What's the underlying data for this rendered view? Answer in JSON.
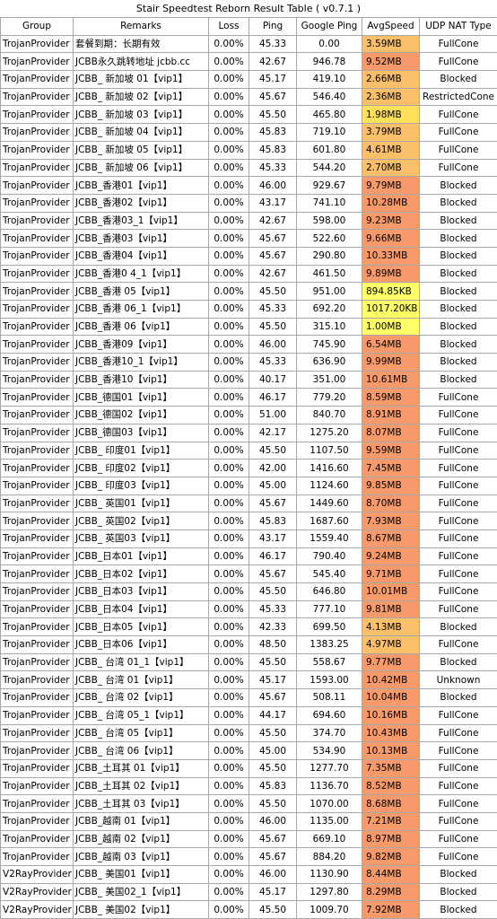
{
  "title": "Stair Speedtest Reborn Result Table ( v0.7.1 )",
  "headers": [
    "Group",
    "Remarks",
    "Loss",
    "Ping",
    "Google Ping",
    "AvgSpeed",
    "UDP NAT Type"
  ],
  "speed_colors": {
    "fast": "#f79a6b",
    "medium": "#fbbf6a",
    "slow": "#fde05a",
    "veryslow": "#ffff66"
  },
  "rows": [
    {
      "group": "TrojanProvider",
      "remarks": "套餐到期：长期有效",
      "loss": "0.00%",
      "ping": "45.33",
      "gping": "0.00",
      "speed": "3.59MB",
      "nat": "FullCone",
      "color": "medium"
    },
    {
      "group": "TrojanProvider",
      "remarks": "JCBB永久跳转地址 jcbb.cc",
      "loss": "0.00%",
      "ping": "42.67",
      "gping": "946.78",
      "speed": "9.52MB",
      "nat": "FullCone",
      "color": "fast"
    },
    {
      "group": "TrojanProvider",
      "remarks": "JCBB_ 新加坡 01【vip1】",
      "loss": "0.00%",
      "ping": "45.17",
      "gping": "419.10",
      "speed": "2.66MB",
      "nat": "Blocked",
      "color": "medium"
    },
    {
      "group": "TrojanProvider",
      "remarks": "JCBB_ 新加坡 02【vip1】",
      "loss": "0.00%",
      "ping": "45.67",
      "gping": "546.40",
      "speed": "2.36MB",
      "nat": "RestrictedCone",
      "color": "medium"
    },
    {
      "group": "TrojanProvider",
      "remarks": "JCBB_ 新加坡 03【vip1】",
      "loss": "0.00%",
      "ping": "45.50",
      "gping": "465.80",
      "speed": "1.98MB",
      "nat": "FullCone",
      "color": "slow"
    },
    {
      "group": "TrojanProvider",
      "remarks": "JCBB_ 新加坡 04【vip1】",
      "loss": "0.00%",
      "ping": "45.83",
      "gping": "719.10",
      "speed": "3.79MB",
      "nat": "FullCone",
      "color": "medium"
    },
    {
      "group": "TrojanProvider",
      "remarks": "JCBB_ 新加坡 05【vip1】",
      "loss": "0.00%",
      "ping": "45.83",
      "gping": "601.80",
      "speed": "4.61MB",
      "nat": "FullCone",
      "color": "medium"
    },
    {
      "group": "TrojanProvider",
      "remarks": "JCBB_ 新加坡 06【vip1】",
      "loss": "0.00%",
      "ping": "45.33",
      "gping": "544.20",
      "speed": "2.70MB",
      "nat": "FullCone",
      "color": "medium"
    },
    {
      "group": "TrojanProvider",
      "remarks": "JCBB_香港01【vip1】",
      "loss": "0.00%",
      "ping": "46.00",
      "gping": "929.67",
      "speed": "9.79MB",
      "nat": "Blocked",
      "color": "fast"
    },
    {
      "group": "TrojanProvider",
      "remarks": "JCBB_香港02【vip1】",
      "loss": "0.00%",
      "ping": "43.17",
      "gping": "741.10",
      "speed": "10.28MB",
      "nat": "Blocked",
      "color": "fast"
    },
    {
      "group": "TrojanProvider",
      "remarks": "JCBB_香港03_1【vip1】",
      "loss": "0.00%",
      "ping": "42.67",
      "gping": "598.00",
      "speed": "9.23MB",
      "nat": "Blocked",
      "color": "fast"
    },
    {
      "group": "TrojanProvider",
      "remarks": "JCBB_香港03【vip1】",
      "loss": "0.00%",
      "ping": "45.67",
      "gping": "522.60",
      "speed": "9.66MB",
      "nat": "Blocked",
      "color": "fast"
    },
    {
      "group": "TrojanProvider",
      "remarks": "JCBB_香港04【vip1】",
      "loss": "0.00%",
      "ping": "45.67",
      "gping": "290.80",
      "speed": "10.33MB",
      "nat": "Blocked",
      "color": "fast"
    },
    {
      "group": "TrojanProvider",
      "remarks": "JCBB_香港0 4_1【vip1】",
      "loss": "0.00%",
      "ping": "42.67",
      "gping": "461.50",
      "speed": "9.89MB",
      "nat": "Blocked",
      "color": "fast"
    },
    {
      "group": "TrojanProvider",
      "remarks": "JCBB_香港 05【vip1】",
      "loss": "0.00%",
      "ping": "45.50",
      "gping": "951.00",
      "speed": "894.85KB",
      "nat": "Blocked",
      "color": "veryslow"
    },
    {
      "group": "TrojanProvider",
      "remarks": "JCBB_香港 06_1【vip1】",
      "loss": "0.00%",
      "ping": "45.33",
      "gping": "692.20",
      "speed": "1017.20KB",
      "nat": "Blocked",
      "color": "veryslow"
    },
    {
      "group": "TrojanProvider",
      "remarks": "JCBB_香港 06【vip1】",
      "loss": "0.00%",
      "ping": "45.50",
      "gping": "315.10",
      "speed": "1.00MB",
      "nat": "Blocked",
      "color": "veryslow"
    },
    {
      "group": "TrojanProvider",
      "remarks": "JCBB_香港09【vip1】",
      "loss": "0.00%",
      "ping": "46.00",
      "gping": "745.90",
      "speed": "6.54MB",
      "nat": "Blocked",
      "color": "fast"
    },
    {
      "group": "TrojanProvider",
      "remarks": "JCBB_香港10_1【vip1】",
      "loss": "0.00%",
      "ping": "45.33",
      "gping": "636.90",
      "speed": "9.99MB",
      "nat": "Blocked",
      "color": "fast"
    },
    {
      "group": "TrojanProvider",
      "remarks": "JCBB_香港10【vip1】",
      "loss": "0.00%",
      "ping": "40.17",
      "gping": "351.00",
      "speed": "10.61MB",
      "nat": "Blocked",
      "color": "fast"
    },
    {
      "group": "TrojanProvider",
      "remarks": "JCBB_德国01【vip1】",
      "loss": "0.00%",
      "ping": "46.17",
      "gping": "779.20",
      "speed": "8.59MB",
      "nat": "FullCone",
      "color": "fast"
    },
    {
      "group": "TrojanProvider",
      "remarks": "JCBB_德国02【vip1】",
      "loss": "0.00%",
      "ping": "51.00",
      "gping": "840.70",
      "speed": "8.91MB",
      "nat": "FullCone",
      "color": "fast"
    },
    {
      "group": "TrojanProvider",
      "remarks": "JCBB_德国03【vip1】",
      "loss": "0.00%",
      "ping": "42.17",
      "gping": "1275.20",
      "speed": "8.07MB",
      "nat": "FullCone",
      "color": "fast"
    },
    {
      "group": "TrojanProvider",
      "remarks": "JCBB_ 印度01【vip1】",
      "loss": "0.00%",
      "ping": "45.50",
      "gping": "1107.50",
      "speed": "9.59MB",
      "nat": "FullCone",
      "color": "fast"
    },
    {
      "group": "TrojanProvider",
      "remarks": "JCBB_ 印度02【vip1】",
      "loss": "0.00%",
      "ping": "42.00",
      "gping": "1416.60",
      "speed": "7.45MB",
      "nat": "FullCone",
      "color": "fast"
    },
    {
      "group": "TrojanProvider",
      "remarks": "JCBB_ 印度03【vip1】",
      "loss": "0.00%",
      "ping": "45.00",
      "gping": "1124.60",
      "speed": "9.85MB",
      "nat": "FullCone",
      "color": "fast"
    },
    {
      "group": "TrojanProvider",
      "remarks": "JCBB_ 英国01【vip1】",
      "loss": "0.00%",
      "ping": "45.67",
      "gping": "1449.60",
      "speed": "8.70MB",
      "nat": "FullCone",
      "color": "fast"
    },
    {
      "group": "TrojanProvider",
      "remarks": "JCBB_ 英国02【vip1】",
      "loss": "0.00%",
      "ping": "45.83",
      "gping": "1687.60",
      "speed": "7.93MB",
      "nat": "FullCone",
      "color": "fast"
    },
    {
      "group": "TrojanProvider",
      "remarks": "JCBB_ 英国03【vip1】",
      "loss": "0.00%",
      "ping": "43.17",
      "gping": "1559.40",
      "speed": "8.67MB",
      "nat": "FullCone",
      "color": "fast"
    },
    {
      "group": "TrojanProvider",
      "remarks": "JCBB_日本01【vip1】",
      "loss": "0.00%",
      "ping": "46.17",
      "gping": "790.40",
      "speed": "9.24MB",
      "nat": "FullCone",
      "color": "fast"
    },
    {
      "group": "TrojanProvider",
      "remarks": "JCBB_日本02【vip1】",
      "loss": "0.00%",
      "ping": "45.67",
      "gping": "545.40",
      "speed": "9.71MB",
      "nat": "FullCone",
      "color": "fast"
    },
    {
      "group": "TrojanProvider",
      "remarks": "JCBB_日本03【vip1】",
      "loss": "0.00%",
      "ping": "45.50",
      "gping": "646.80",
      "speed": "10.01MB",
      "nat": "FullCone",
      "color": "fast"
    },
    {
      "group": "TrojanProvider",
      "remarks": "JCBB_日本04【vip1】",
      "loss": "0.00%",
      "ping": "45.33",
      "gping": "777.10",
      "speed": "9.81MB",
      "nat": "FullCone",
      "color": "fast"
    },
    {
      "group": "TrojanProvider",
      "remarks": "JCBB_日本05【vip1】",
      "loss": "0.00%",
      "ping": "42.33",
      "gping": "699.50",
      "speed": "4.13MB",
      "nat": "Blocked",
      "color": "medium"
    },
    {
      "group": "TrojanProvider",
      "remarks": "JCBB_日本06【vip1】",
      "loss": "0.00%",
      "ping": "48.50",
      "gping": "1383.25",
      "speed": "4.97MB",
      "nat": "FullCone",
      "color": "medium"
    },
    {
      "group": "TrojanProvider",
      "remarks": "JCBB_ 台湾 01_1【vip1】",
      "loss": "0.00%",
      "ping": "45.50",
      "gping": "558.67",
      "speed": "9.77MB",
      "nat": "Blocked",
      "color": "fast"
    },
    {
      "group": "TrojanProvider",
      "remarks": "JCBB_ 台湾 01【vip1】",
      "loss": "0.00%",
      "ping": "45.17",
      "gping": "1593.00",
      "speed": "10.42MB",
      "nat": "Unknown",
      "color": "fast"
    },
    {
      "group": "TrojanProvider",
      "remarks": "JCBB_ 台湾 02【vip1】",
      "loss": "0.00%",
      "ping": "45.67",
      "gping": "508.11",
      "speed": "10.04MB",
      "nat": "Blocked",
      "color": "fast"
    },
    {
      "group": "TrojanProvider",
      "remarks": "JCBB_ 台湾 05_1【vip1】",
      "loss": "0.00%",
      "ping": "44.17",
      "gping": "694.60",
      "speed": "10.16MB",
      "nat": "FullCone",
      "color": "fast"
    },
    {
      "group": "TrojanProvider",
      "remarks": "JCBB_ 台湾 05【vip1】",
      "loss": "0.00%",
      "ping": "45.50",
      "gping": "374.70",
      "speed": "10.43MB",
      "nat": "FullCone",
      "color": "fast"
    },
    {
      "group": "TrojanProvider",
      "remarks": "JCBB_ 台湾 06【vip1】",
      "loss": "0.00%",
      "ping": "45.00",
      "gping": "534.90",
      "speed": "10.13MB",
      "nat": "FullCone",
      "color": "fast"
    },
    {
      "group": "TrojanProvider",
      "remarks": "JCBB_土耳其 01【vip1】",
      "loss": "0.00%",
      "ping": "45.50",
      "gping": "1277.70",
      "speed": "7.35MB",
      "nat": "FullCone",
      "color": "fast"
    },
    {
      "group": "TrojanProvider",
      "remarks": "JCBB_土耳其 02【vip1】",
      "loss": "0.00%",
      "ping": "45.83",
      "gping": "1136.70",
      "speed": "8.52MB",
      "nat": "FullCone",
      "color": "fast"
    },
    {
      "group": "TrojanProvider",
      "remarks": "JCBB_土耳其 03【vip1】",
      "loss": "0.00%",
      "ping": "45.50",
      "gping": "1070.00",
      "speed": "8.68MB",
      "nat": "FullCone",
      "color": "fast"
    },
    {
      "group": "TrojanProvider",
      "remarks": "JCBB_越南 01【vip1】",
      "loss": "0.00%",
      "ping": "46.00",
      "gping": "1135.00",
      "speed": "7.21MB",
      "nat": "FullCone",
      "color": "fast"
    },
    {
      "group": "TrojanProvider",
      "remarks": "JCBB_越南 02【vip1】",
      "loss": "0.00%",
      "ping": "45.67",
      "gping": "669.10",
      "speed": "8.97MB",
      "nat": "FullCone",
      "color": "fast"
    },
    {
      "group": "TrojanProvider",
      "remarks": "JCBB_越南 03【vip1】",
      "loss": "0.00%",
      "ping": "45.67",
      "gping": "884.20",
      "speed": "9.82MB",
      "nat": "FullCone",
      "color": "fast"
    },
    {
      "group": "V2RayProvider",
      "remarks": "JCBB_ 美国01【vip1】",
      "loss": "0.00%",
      "ping": "46.00",
      "gping": "1130.90",
      "speed": "8.44MB",
      "nat": "Blocked",
      "color": "fast"
    },
    {
      "group": "V2RayProvider",
      "remarks": "JCBB_ 美国02_1【vip1】",
      "loss": "0.00%",
      "ping": "45.17",
      "gping": "1297.80",
      "speed": "8.29MB",
      "nat": "Blocked",
      "color": "fast"
    },
    {
      "group": "V2RayProvider",
      "remarks": "JCBB_ 美国02【vip1】",
      "loss": "0.00%",
      "ping": "45.50",
      "gping": "1009.70",
      "speed": "7.92MB",
      "nat": "Blocked",
      "color": "fast"
    }
  ]
}
